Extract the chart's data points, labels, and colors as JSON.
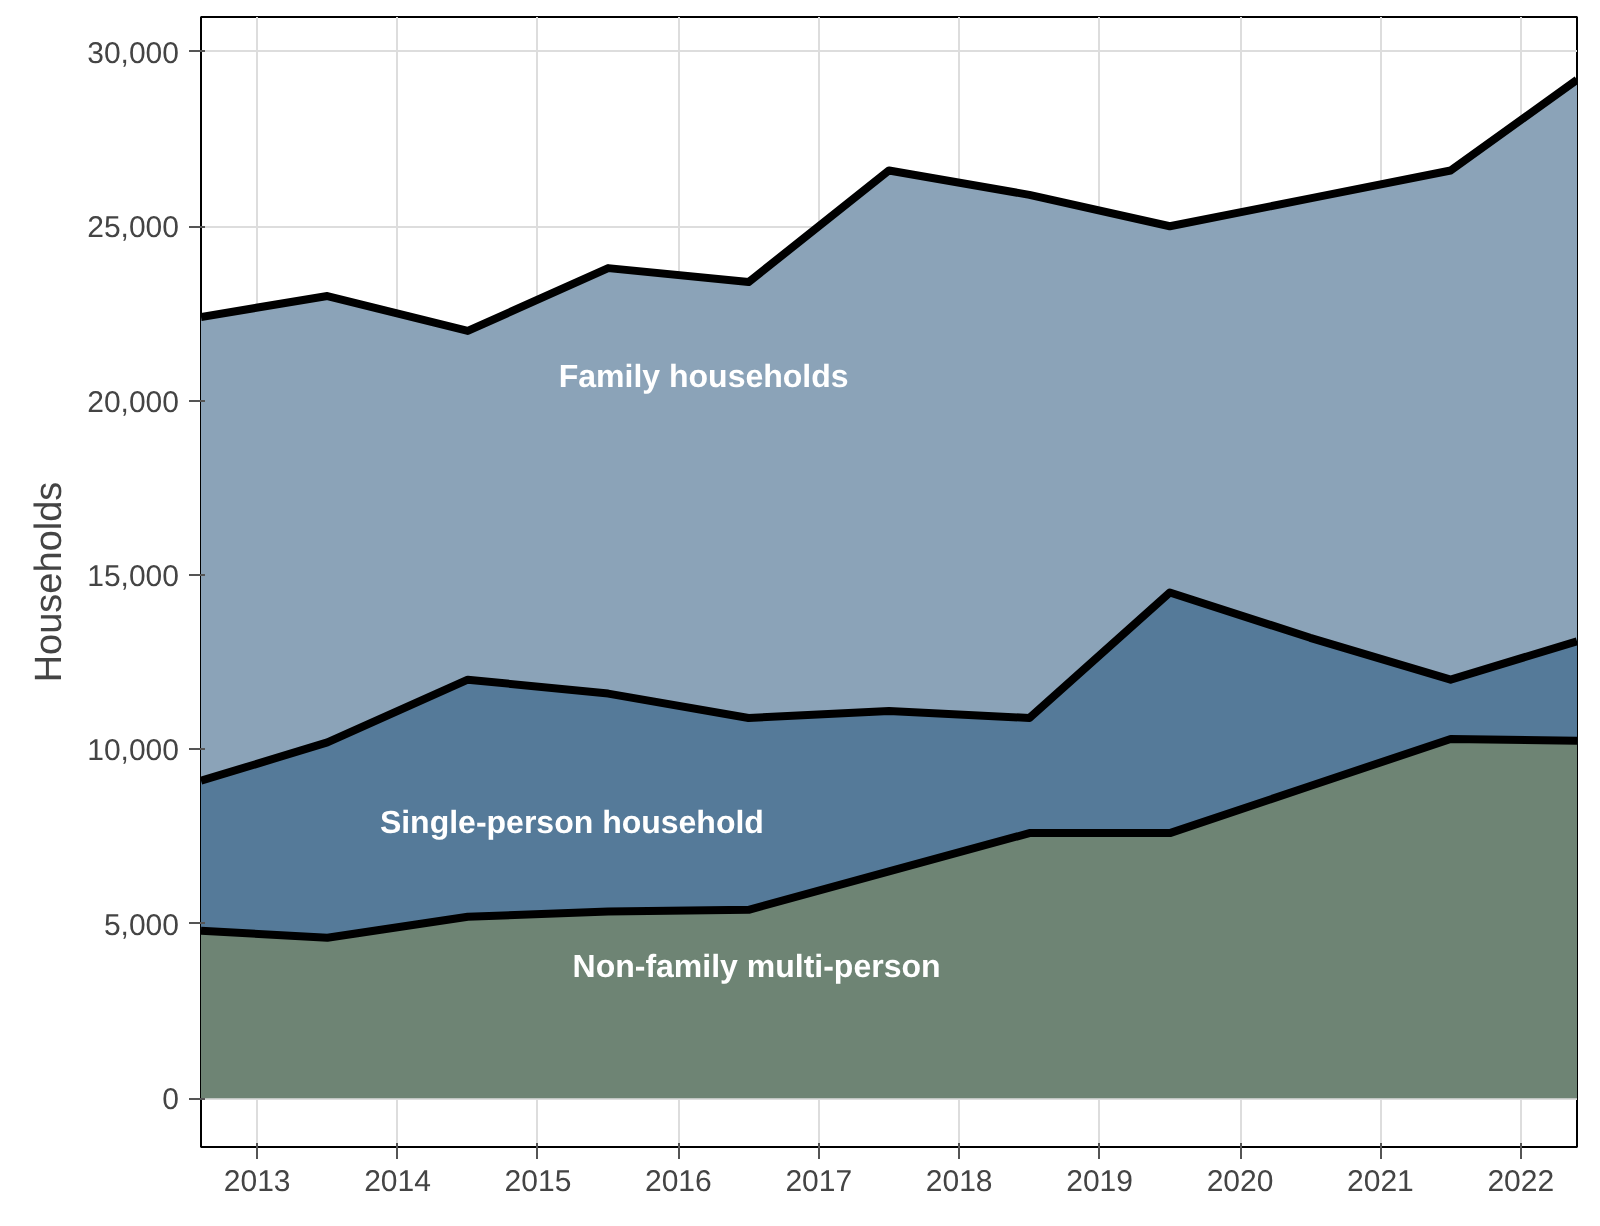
{
  "chart_data": {
    "type": "area",
    "stacked": true,
    "ylabel": "Households",
    "x": [
      2012.6,
      2013.5,
      2014.5,
      2015.5,
      2016.5,
      2017.5,
      2018.5,
      2019.5,
      2020.5,
      2021.5,
      2022.4
    ],
    "xlim": [
      2012.6,
      2022.4
    ],
    "xticks": [
      2013,
      2014,
      2015,
      2016,
      2017,
      2018,
      2019,
      2020,
      2021,
      2022
    ],
    "ylim": [
      -1400,
      31000
    ],
    "yticks": [
      0,
      {
        "value": 5000,
        "label": "5,000"
      },
      {
        "value": 10000,
        "label": "10,000"
      },
      {
        "value": 15000,
        "label": "15,000"
      },
      {
        "value": 20000,
        "label": "20,000"
      },
      {
        "value": 25000,
        "label": "25,000"
      },
      {
        "value": 30000,
        "label": "30,000"
      }
    ],
    "grid": true,
    "series": [
      {
        "name": "Non-family multi-person",
        "color": "#6e8474",
        "values": [
          4800,
          4600,
          5200,
          5350,
          5400,
          6500,
          7600,
          7600,
          8950,
          10300,
          10250
        ]
      },
      {
        "name": "Single-person household",
        "color": "#557a99",
        "values": [
          4300,
          5600,
          6800,
          6250,
          5500,
          4600,
          3300,
          6900,
          4250,
          1700,
          2850
        ]
      },
      {
        "name": "Family households",
        "color": "#8ba3b8",
        "values": [
          13300,
          12800,
          10000,
          12200,
          12500,
          15500,
          15000,
          10500,
          12600,
          14600,
          16100
        ]
      }
    ]
  }
}
